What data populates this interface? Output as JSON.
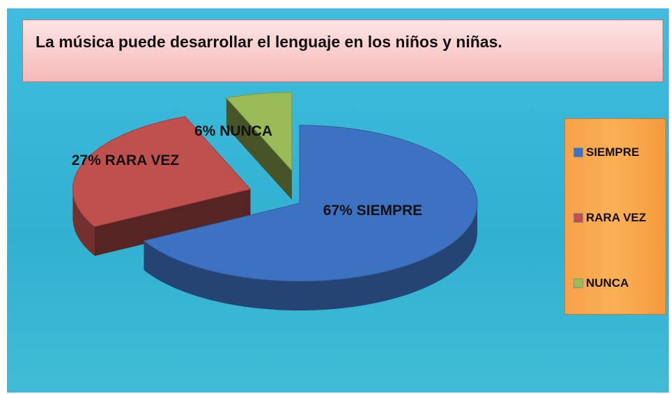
{
  "chart_data": {
    "type": "pie",
    "title": "La música puede desarrollar el lenguaje en los niños y niñas.",
    "categories": [
      "SIEMPRE",
      "RARA VEZ",
      "NUNCA"
    ],
    "values": [
      67,
      27,
      6
    ],
    "value_labels": [
      "67%",
      "27%",
      "6%"
    ],
    "colors": [
      "#3d72c2",
      "#c0504d",
      "#9bbb59"
    ],
    "legend": "right"
  }
}
